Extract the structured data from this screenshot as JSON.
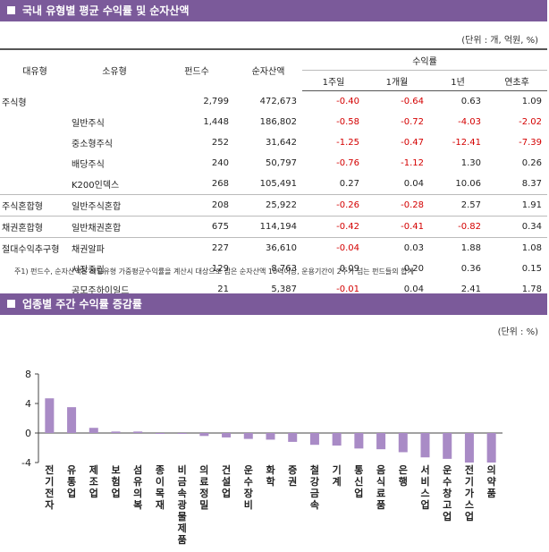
{
  "section1": {
    "title": "국내 유형별 평균 수익률 및 순자산액",
    "unit": "(단위 : 개, 억원, %)",
    "headers": {
      "type": "대유형",
      "subtype": "소유형",
      "funds": "펀드수",
      "net_assets": "순자산액",
      "returns": "수익률",
      "w1": "1주일",
      "m1": "1개월",
      "y1": "1년",
      "ytd": "연초후"
    },
    "rows": [
      {
        "type": "주식형",
        "subtype": "",
        "funds": "2,799",
        "net_assets": "472,673",
        "w1": "-0.40",
        "m1": "-0.64",
        "y1": "0.63",
        "ytd": "1.09",
        "group_start": true
      },
      {
        "type": "",
        "subtype": "일반주식",
        "funds": "1,448",
        "net_assets": "186,802",
        "w1": "-0.58",
        "m1": "-0.72",
        "y1": "-4.03",
        "ytd": "-2.02",
        "group_start": false
      },
      {
        "type": "",
        "subtype": "중소형주식",
        "funds": "252",
        "net_assets": "31,642",
        "w1": "-1.25",
        "m1": "-0.47",
        "y1": "-12.41",
        "ytd": "-7.39",
        "group_start": false
      },
      {
        "type": "",
        "subtype": "배당주식",
        "funds": "240",
        "net_assets": "50,797",
        "w1": "-0.76",
        "m1": "-1.12",
        "y1": "1.30",
        "ytd": "0.26",
        "group_start": false
      },
      {
        "type": "",
        "subtype": "K200인덱스",
        "funds": "268",
        "net_assets": "105,491",
        "w1": "0.27",
        "m1": "0.04",
        "y1": "10.06",
        "ytd": "8.37",
        "group_start": false
      },
      {
        "type": "주식혼합형",
        "subtype": "일반주식혼합",
        "funds": "208",
        "net_assets": "25,922",
        "w1": "-0.26",
        "m1": "-0.28",
        "y1": "2.57",
        "ytd": "1.91",
        "group_start": true
      },
      {
        "type": "채권혼합형",
        "subtype": "일반채권혼합",
        "funds": "675",
        "net_assets": "114,194",
        "w1": "-0.42",
        "m1": "-0.41",
        "y1": "-0.82",
        "ytd": "0.34",
        "group_start": true
      },
      {
        "type": "절대수익추구형",
        "subtype": "채권알파",
        "funds": "227",
        "net_assets": "36,610",
        "w1": "-0.04",
        "m1": "0.03",
        "y1": "1.88",
        "ytd": "1.08",
        "group_start": true
      },
      {
        "type": "",
        "subtype": "시장중립",
        "funds": "129",
        "net_assets": "8,763",
        "w1": "0.09",
        "m1": "0.20",
        "y1": "0.36",
        "ytd": "0.15",
        "group_start": false
      },
      {
        "type": "",
        "subtype": "공모주하이일드",
        "funds": "21",
        "net_assets": "5,387",
        "w1": "-0.01",
        "m1": "0.04",
        "y1": "2.41",
        "ytd": "1.78",
        "group_start": false
      }
    ],
    "footnote": "주1) 펀드수, 순자산액은 해당유형 가중평균수익률을 계산시 대상으로 삼은 순자산액 10억이상, 운용기간이 2주가 넘는 펀드들의 합계"
  },
  "section2": {
    "title": "업종별 주간 수익률 증감률",
    "unit": "(단위 : %)"
  },
  "chart_data": {
    "type": "bar",
    "title": "",
    "xlabel": "",
    "ylabel": "",
    "ylim": [
      -4,
      8
    ],
    "yticks": [
      "8",
      "4",
      "0",
      "-4"
    ],
    "grid": false,
    "bar_color": "#a98bc6",
    "categories": [
      "전기전자",
      "유통업",
      "제조업",
      "보험업",
      "섬유의복",
      "종이목재",
      "비금속광물제품",
      "의료정밀",
      "건설업",
      "운수장비",
      "화학",
      "증권",
      "철강금속",
      "기계",
      "통신업",
      "음식료품",
      "은행",
      "서비스업",
      "운수창고업",
      "전기가스업",
      "의약품"
    ],
    "values": [
      4.7,
      3.5,
      0.7,
      0.2,
      0.2,
      -0.1,
      -0.1,
      -0.4,
      -0.6,
      -0.8,
      -0.9,
      -1.2,
      -1.6,
      -1.7,
      -2.1,
      -2.2,
      -2.6,
      -3.3,
      -3.5,
      -4.0,
      -4.0
    ]
  }
}
